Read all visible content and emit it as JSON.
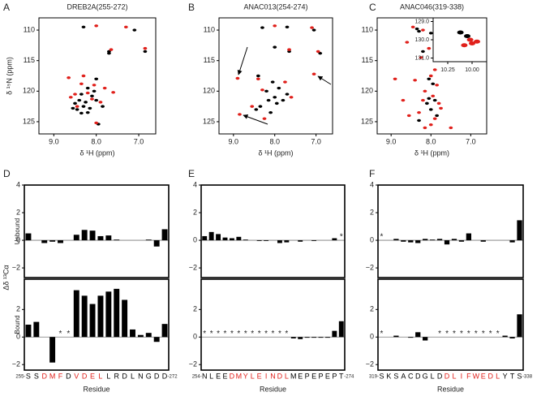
{
  "chart_data": [
    {
      "type": "scatter",
      "panel": "A",
      "title": "DREB2A(255-272)",
      "xlabel": "δ ¹H (ppm)",
      "ylabel": "δ ¹⁵N (ppm)",
      "xlim": [
        9.35,
        6.6
      ],
      "ylim": [
        127,
        108
      ],
      "xticks": [
        {
          "value": 9,
          "label": "9.0"
        },
        {
          "value": 8,
          "label": "8.0"
        },
        {
          "value": 7,
          "label": "7.0"
        }
      ],
      "yticks": [
        110,
        115,
        120,
        125
      ],
      "series": [
        {
          "color": "#000000",
          "x": [
            8.3,
            7.1,
            7.7,
            7.7,
            6.85,
            8.0,
            8.2,
            8.05,
            8.35,
            8.1,
            8.4,
            8.25,
            8.5,
            8.0,
            8.3,
            8.15,
            8.45,
            7.85,
            8.35,
            8.2,
            7.95,
            8.55
          ],
          "y": [
            109.5,
            110,
            113.5,
            113.8,
            113.5,
            118,
            119.5,
            120,
            120.5,
            120.8,
            121.5,
            121.8,
            122,
            121.5,
            122.5,
            122.8,
            123,
            122.5,
            123.6,
            123.5,
            125.4,
            122.8
          ]
        },
        {
          "color": "#e0201b",
          "x": [
            8.0,
            7.3,
            7.65,
            6.85,
            8.65,
            8.3,
            8.35,
            8.05,
            7.8,
            8.2,
            8.5,
            7.6,
            8.1,
            8.6,
            8.45,
            8.0,
            7.9
          ],
          "y": [
            109.3,
            109.5,
            113.2,
            113,
            117.8,
            117.5,
            118.8,
            119,
            119.5,
            120.3,
            120.5,
            120.2,
            121.3,
            121,
            122.5,
            125.2,
            121.8
          ]
        }
      ]
    },
    {
      "type": "scatter",
      "panel": "B",
      "title": "ANAC013(254-274)",
      "xlabel": "δ ¹H (ppm)",
      "xlim": [
        9.35,
        6.6
      ],
      "ylim": [
        127,
        108
      ],
      "xticks": [
        {
          "value": 9,
          "label": "9.0"
        },
        {
          "value": 8,
          "label": "8.0"
        },
        {
          "value": 7,
          "label": "7.0"
        }
      ],
      "yticks": [
        110,
        115,
        120,
        125
      ],
      "series": [
        {
          "color": "#000000",
          "x": [
            8.3,
            7.7,
            7.05,
            8.0,
            7.65,
            6.9,
            8.4,
            8.05,
            8.2,
            7.9,
            8.0,
            8.15,
            8.35,
            7.95,
            8.45,
            8.1,
            7.8,
            7.7
          ],
          "y": [
            109.6,
            109.5,
            110,
            112.8,
            113.5,
            113.8,
            117.5,
            118.5,
            120,
            119.5,
            121,
            121.5,
            122.5,
            122,
            123,
            123.5,
            121.5,
            120.5
          ]
        },
        {
          "color": "#e0201b",
          "x": [
            8.0,
            7.1,
            7.65,
            6.95,
            8.9,
            7.05,
            8.4,
            8.3,
            7.75,
            8.55,
            8.85,
            8.25,
            7.6
          ],
          "y": [
            109.3,
            109.6,
            113.2,
            113.5,
            117.9,
            117.2,
            118,
            119.8,
            118.5,
            122.5,
            123.8,
            124.5,
            121
          ]
        }
      ]
    },
    {
      "type": "scatter",
      "panel": "C",
      "title": "ANAC046(319-338)",
      "xlabel": "δ ¹H (ppm)",
      "xlim": [
        9.35,
        6.6
      ],
      "ylim": [
        127,
        108
      ],
      "xticks": [
        {
          "value": 9,
          "label": "9.0"
        },
        {
          "value": 8,
          "label": "8.0"
        },
        {
          "value": 7,
          "label": "7.0"
        }
      ],
      "yticks": [
        110,
        115,
        120,
        125
      ],
      "series": [
        {
          "color": "#000000",
          "x": [
            8.35,
            8.0,
            8.3,
            8.2,
            8.05,
            7.95,
            7.9,
            8.1,
            8.0,
            7.85,
            8.3,
            8.05
          ],
          "y": [
            109.8,
            110.5,
            110.2,
            113.5,
            118,
            118.8,
            121.5,
            122,
            123,
            124,
            124.8,
            121.2
          ]
        },
        {
          "color": "#e0201b",
          "x": [
            8.45,
            8.2,
            8.6,
            8.05,
            8.25,
            7.9,
            8.0,
            8.4,
            7.85,
            8.15,
            7.95,
            8.2,
            7.8,
            7.75,
            8.3,
            8.55,
            8.0,
            8.15,
            7.9,
            7.6,
            8.7,
            7.5,
            8.9,
            7.3
          ],
          "y": [
            109.5,
            110,
            112,
            113,
            114.5,
            116.5,
            117.5,
            118.2,
            119,
            120,
            120.8,
            121.5,
            122,
            122.8,
            123.5,
            124,
            125.5,
            126,
            124.5,
            114,
            121.5,
            126,
            118,
            113.5
          ]
        }
      ]
    },
    {
      "type": "scatter",
      "xlim": [
        10.4,
        9.85
      ],
      "ylim": [
        131.2,
        128.8
      ],
      "xticks": [
        {
          "value": 10.25,
          "label": "10.25"
        },
        {
          "value": 10,
          "label": "10.00"
        }
      ],
      "yticks": [
        {
          "value": 129,
          "label": "129.0"
        },
        {
          "value": 130,
          "label": "130.0"
        },
        {
          "value": 131,
          "label": "131.0"
        }
      ],
      "series": [
        {
          "color": "#000000",
          "x": [
            10.12,
            10.05
          ],
          "y": [
            129.6,
            129.8
          ]
        },
        {
          "color": "#e0201b",
          "x": [
            10.02,
            10.0,
            9.95,
            10.08
          ],
          "y": [
            130.0,
            130.2,
            130.1,
            130.3
          ]
        }
      ]
    },
    {
      "type": "bar",
      "panel": "D",
      "ylabel": "Unbound",
      "axis_title": "Δδ ¹³Cα",
      "color": "#000000",
      "ylim": [
        -2.7,
        4
      ],
      "yticks": [
        {
          "value": -2,
          "label": "−2"
        },
        0,
        2,
        4
      ],
      "values": [
        0.5,
        0,
        -0.2,
        -0.1,
        -0.2,
        0,
        0.4,
        0.75,
        0.7,
        0.3,
        0.35,
        0.05,
        0,
        0,
        0,
        0.05,
        -0.45,
        0.8
      ]
    },
    {
      "type": "bar",
      "ylabel": "Bound",
      "xlabel": "Residue",
      "color": "#000000",
      "start_label": "255-",
      "end_label": "-272",
      "ylim": [
        -2.4,
        4.2
      ],
      "yticks": [
        {
          "value": -2,
          "label": "−2"
        },
        0,
        2
      ],
      "categories": [
        "S",
        "S",
        "D",
        "M",
        "F",
        "D",
        "V",
        "D",
        "E",
        "L",
        "L",
        "R",
        "D",
        "L",
        "N",
        "G",
        "D",
        "D"
      ],
      "category_colors": [
        "#000000",
        "#000000",
        "#e0201b",
        "#e0201b",
        "#e0201b",
        "#000000",
        "#e0201b",
        "#e0201b",
        "#e0201b",
        "#e0201b",
        "#000000",
        "#000000",
        "#000000",
        "#000000",
        "#000000",
        "#000000",
        "#000000",
        "#000000"
      ],
      "values": [
        0.9,
        1.1,
        0,
        -1.85,
        null,
        null,
        3.4,
        3.0,
        2.4,
        3.0,
        3.3,
        3.5,
        2.7,
        0.55,
        0.15,
        0.3,
        -0.35,
        0.95
      ],
      "value_labels": [
        null,
        null,
        null,
        null,
        "*",
        "*",
        null,
        null,
        null,
        null,
        null,
        null,
        null,
        null,
        null,
        null,
        null,
        null
      ]
    },
    {
      "type": "bar",
      "panel": "E",
      "color": "#000000",
      "ylim": [
        -2.7,
        4
      ],
      "yticks": [
        {
          "value": -2,
          "label": "−2"
        },
        0,
        2,
        4
      ],
      "values": [
        0.3,
        0.6,
        0.45,
        0.2,
        0.15,
        0.25,
        0.05,
        0,
        -0.05,
        -0.05,
        0,
        -0.2,
        -0.15,
        0,
        -0.1,
        0,
        -0.05,
        0,
        0,
        0.15,
        null
      ],
      "value_labels": [
        null,
        null,
        null,
        null,
        null,
        null,
        null,
        null,
        null,
        null,
        null,
        null,
        null,
        null,
        null,
        null,
        null,
        null,
        null,
        null,
        "*"
      ]
    },
    {
      "type": "bar",
      "xlabel": "Residue",
      "color": "#000000",
      "start_label": "254-",
      "end_label": "-274",
      "ylim": [
        -2.4,
        4.2
      ],
      "yticks": [
        {
          "value": -2,
          "label": "−2"
        },
        0,
        2
      ],
      "categories": [
        "N",
        "L",
        "E",
        "E",
        "D",
        "M",
        "Y",
        "L",
        "E",
        "I",
        "N",
        "D",
        "L",
        "M",
        "E",
        "P",
        "E",
        "P",
        "E",
        "P",
        "T"
      ],
      "category_colors": [
        "#000000",
        "#000000",
        "#000000",
        "#000000",
        "#e0201b",
        "#e0201b",
        "#e0201b",
        "#e0201b",
        "#e0201b",
        "#e0201b",
        "#e0201b",
        "#e0201b",
        "#e0201b",
        "#000000",
        "#000000",
        "#000000",
        "#000000",
        "#000000",
        "#000000",
        "#000000",
        "#000000"
      ],
      "values": [
        null,
        null,
        null,
        null,
        null,
        null,
        null,
        null,
        null,
        null,
        null,
        null,
        null,
        -0.1,
        -0.15,
        -0.05,
        -0.05,
        -0.05,
        -0.05,
        0.45,
        1.15
      ],
      "value_labels": [
        "*",
        "*",
        "*",
        "*",
        "*",
        "*",
        "*",
        "*",
        "*",
        "*",
        "*",
        "*",
        "*",
        null,
        null,
        null,
        null,
        null,
        null,
        null,
        null
      ]
    },
    {
      "type": "bar",
      "panel": "F",
      "color": "#000000",
      "ylim": [
        -2.7,
        4
      ],
      "yticks": [
        {
          "value": -2,
          "label": "−2"
        },
        0,
        2,
        4
      ],
      "values": [
        null,
        0,
        0.1,
        -0.1,
        -0.15,
        -0.2,
        0.1,
        0.05,
        0.1,
        -0.3,
        0.1,
        -0.1,
        0.5,
        0,
        -0.1,
        0,
        0,
        0,
        -0.15,
        1.45
      ],
      "value_labels": [
        "*",
        null,
        null,
        null,
        null,
        null,
        null,
        null,
        null,
        null,
        null,
        null,
        null,
        null,
        null,
        null,
        null,
        null,
        null,
        null
      ]
    },
    {
      "type": "bar",
      "xlabel": "Residue",
      "color": "#000000",
      "start_label": "319-",
      "end_label": "-338",
      "ylim": [
        -2.4,
        4.2
      ],
      "yticks": [
        {
          "value": -2,
          "label": "−2"
        },
        0,
        2
      ],
      "categories": [
        "S",
        "K",
        "S",
        "A",
        "C",
        "D",
        "G",
        "L",
        "D",
        "D",
        "L",
        "I",
        "F",
        "W",
        "E",
        "D",
        "L",
        "Y",
        "T",
        "S"
      ],
      "category_colors": [
        "#000000",
        "#000000",
        "#000000",
        "#000000",
        "#000000",
        "#000000",
        "#000000",
        "#000000",
        "#000000",
        "#e0201b",
        "#e0201b",
        "#e0201b",
        "#e0201b",
        "#e0201b",
        "#e0201b",
        "#e0201b",
        "#e0201b",
        "#000000",
        "#000000",
        "#000000"
      ],
      "values": [
        null,
        0,
        0.1,
        0,
        -0.05,
        0.35,
        -0.25,
        0,
        null,
        null,
        null,
        null,
        null,
        null,
        null,
        null,
        null,
        0.1,
        -0.1,
        1.65
      ],
      "value_labels": [
        "*",
        null,
        null,
        null,
        null,
        null,
        null,
        null,
        "*",
        "*",
        "*",
        "*",
        "*",
        "*",
        "*",
        "*",
        "*",
        null,
        null,
        null
      ]
    }
  ]
}
